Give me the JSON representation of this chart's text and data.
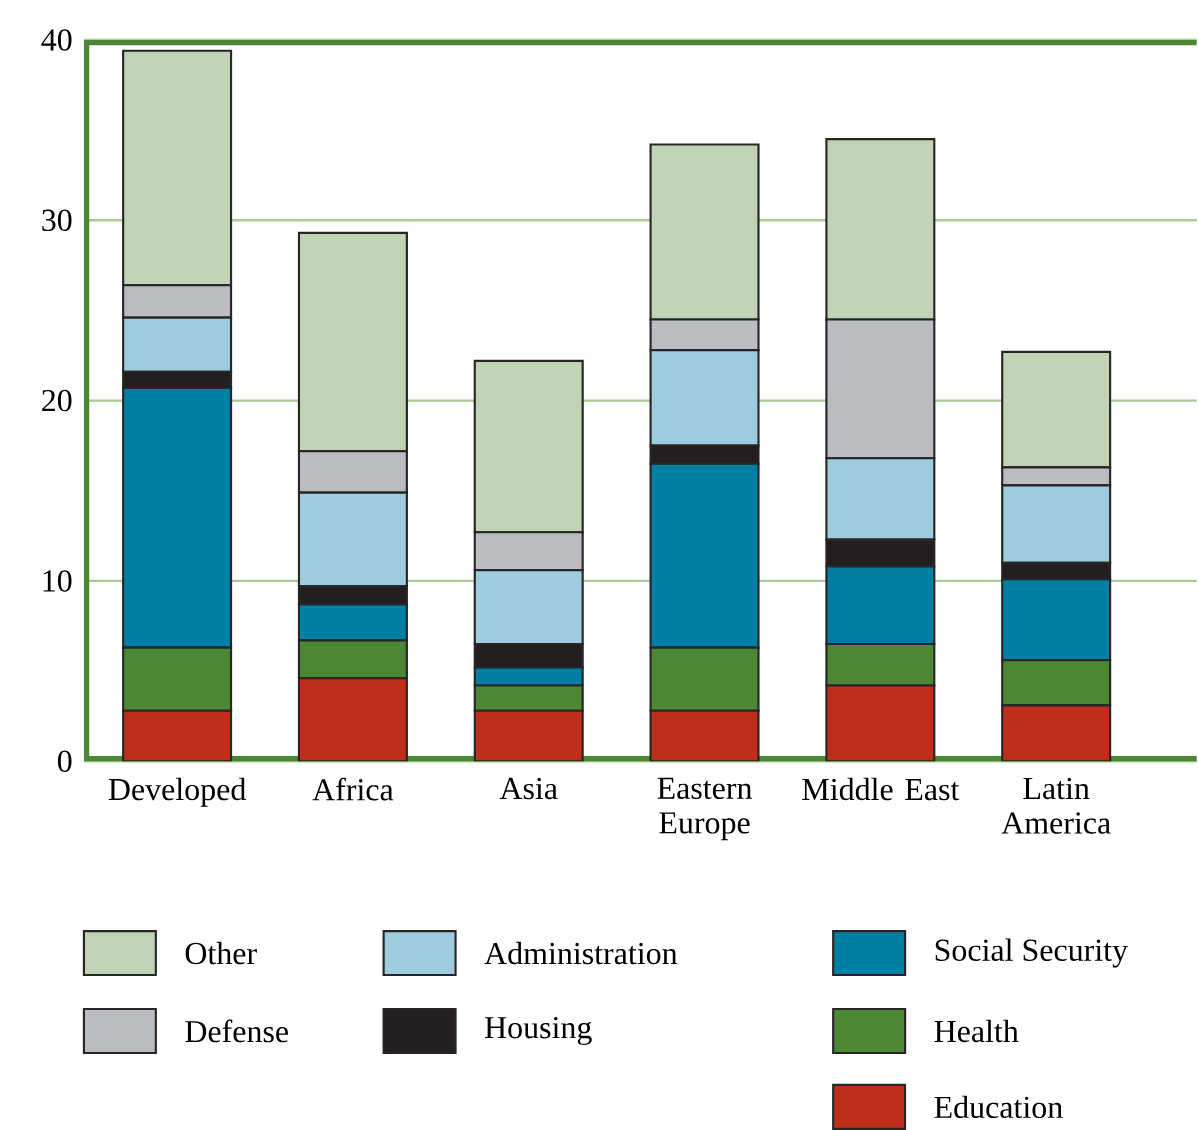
{
  "chart_data": {
    "type": "bar",
    "stacked": true,
    "categories": [
      "Developed",
      "Africa",
      "Asia",
      "Eastern Europe",
      "Middle East",
      "Latin America"
    ],
    "series": [
      {
        "name": "Education",
        "color": "#be2e1a",
        "values": [
          2.8,
          4.6,
          2.8,
          2.8,
          4.2,
          3.1
        ]
      },
      {
        "name": "Health",
        "color": "#4e8734",
        "values": [
          3.5,
          2.1,
          1.4,
          3.5,
          2.3,
          2.5
        ]
      },
      {
        "name": "Social Security",
        "color": "#007ea3",
        "values": [
          14.4,
          2.0,
          1.0,
          10.2,
          4.3,
          4.5
        ]
      },
      {
        "name": "Housing",
        "color": "#231f20",
        "values": [
          0.9,
          1.0,
          1.3,
          1.0,
          1.5,
          0.9
        ]
      },
      {
        "name": "Administration",
        "color": "#9fcbde",
        "values": [
          3.0,
          5.2,
          4.1,
          5.3,
          4.5,
          4.3
        ]
      },
      {
        "name": "Defense",
        "color": "#bbbcc0",
        "values": [
          1.8,
          2.3,
          2.1,
          1.7,
          7.7,
          1.0
        ]
      },
      {
        "name": "Other",
        "color": "#c0d3b4",
        "values": [
          13.0,
          12.1,
          9.5,
          9.7,
          10.0,
          6.4
        ]
      }
    ],
    "ylim": [
      0,
      40
    ],
    "yticks": [
      0,
      10,
      20,
      30,
      40
    ],
    "grid": "y",
    "legend": "bottom"
  }
}
